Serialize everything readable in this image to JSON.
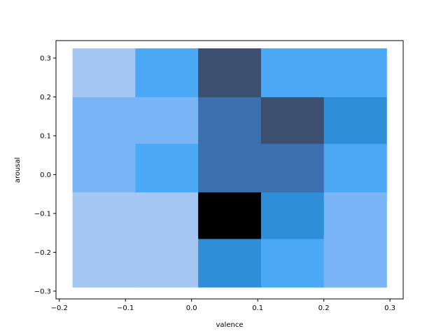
{
  "chart_data": {
    "type": "heatmap",
    "xlabel": "valence",
    "ylabel": "arousal",
    "x_edges": [
      -0.18,
      -0.085,
      0.01,
      0.105,
      0.2,
      0.295
    ],
    "y_edges": [
      -0.29,
      -0.165,
      -0.045,
      0.08,
      0.2,
      0.325
    ],
    "xlim": [
      -0.205,
      0.32
    ],
    "ylim": [
      -0.32,
      0.345
    ],
    "x_ticks": [
      -0.2,
      -0.1,
      0.0,
      0.1,
      0.2,
      0.3
    ],
    "x_tick_labels": [
      "−0.2",
      "−0.1",
      "0.0",
      "0.1",
      "0.2",
      "0.3"
    ],
    "y_ticks": [
      -0.3,
      -0.2,
      -0.1,
      0.0,
      0.1,
      0.2,
      0.3
    ],
    "y_tick_labels": [
      "−0.3",
      "−0.2",
      "−0.1",
      "0.0",
      "0.1",
      "0.2",
      "0.3"
    ],
    "grid": false,
    "legend": "none",
    "colormap": [
      "#a3c6f2",
      "#79b4f5",
      "#4aa8f5",
      "#2e8fd8",
      "#3b6fae",
      "#3c4f6e"
    ],
    "cells": [
      {
        "row": 0,
        "col": 0,
        "value": 0
      },
      {
        "row": 0,
        "col": 1,
        "value": 0
      },
      {
        "row": 0,
        "col": 2,
        "value": 3
      },
      {
        "row": 0,
        "col": 3,
        "value": 2
      },
      {
        "row": 0,
        "col": 4,
        "value": 1
      },
      {
        "row": 1,
        "col": 0,
        "value": 0
      },
      {
        "row": 1,
        "col": 1,
        "value": 0
      },
      {
        "row": 1,
        "col": 2,
        "value": 6
      },
      {
        "row": 1,
        "col": 3,
        "value": 3
      },
      {
        "row": 1,
        "col": 4,
        "value": 1
      },
      {
        "row": 2,
        "col": 0,
        "value": 1
      },
      {
        "row": 2,
        "col": 1,
        "value": 2
      },
      {
        "row": 2,
        "col": 2,
        "value": 4
      },
      {
        "row": 2,
        "col": 3,
        "value": 4
      },
      {
        "row": 2,
        "col": 4,
        "value": 2
      },
      {
        "row": 3,
        "col": 0,
        "value": 1
      },
      {
        "row": 3,
        "col": 1,
        "value": 1
      },
      {
        "row": 3,
        "col": 2,
        "value": 4
      },
      {
        "row": 3,
        "col": 3,
        "value": 5
      },
      {
        "row": 3,
        "col": 4,
        "value": 3
      },
      {
        "row": 4,
        "col": 0,
        "value": 0
      },
      {
        "row": 4,
        "col": 1,
        "value": 2
      },
      {
        "row": 4,
        "col": 2,
        "value": 5
      },
      {
        "row": 4,
        "col": 3,
        "value": 2
      },
      {
        "row": 4,
        "col": 4,
        "value": 2
      }
    ]
  }
}
